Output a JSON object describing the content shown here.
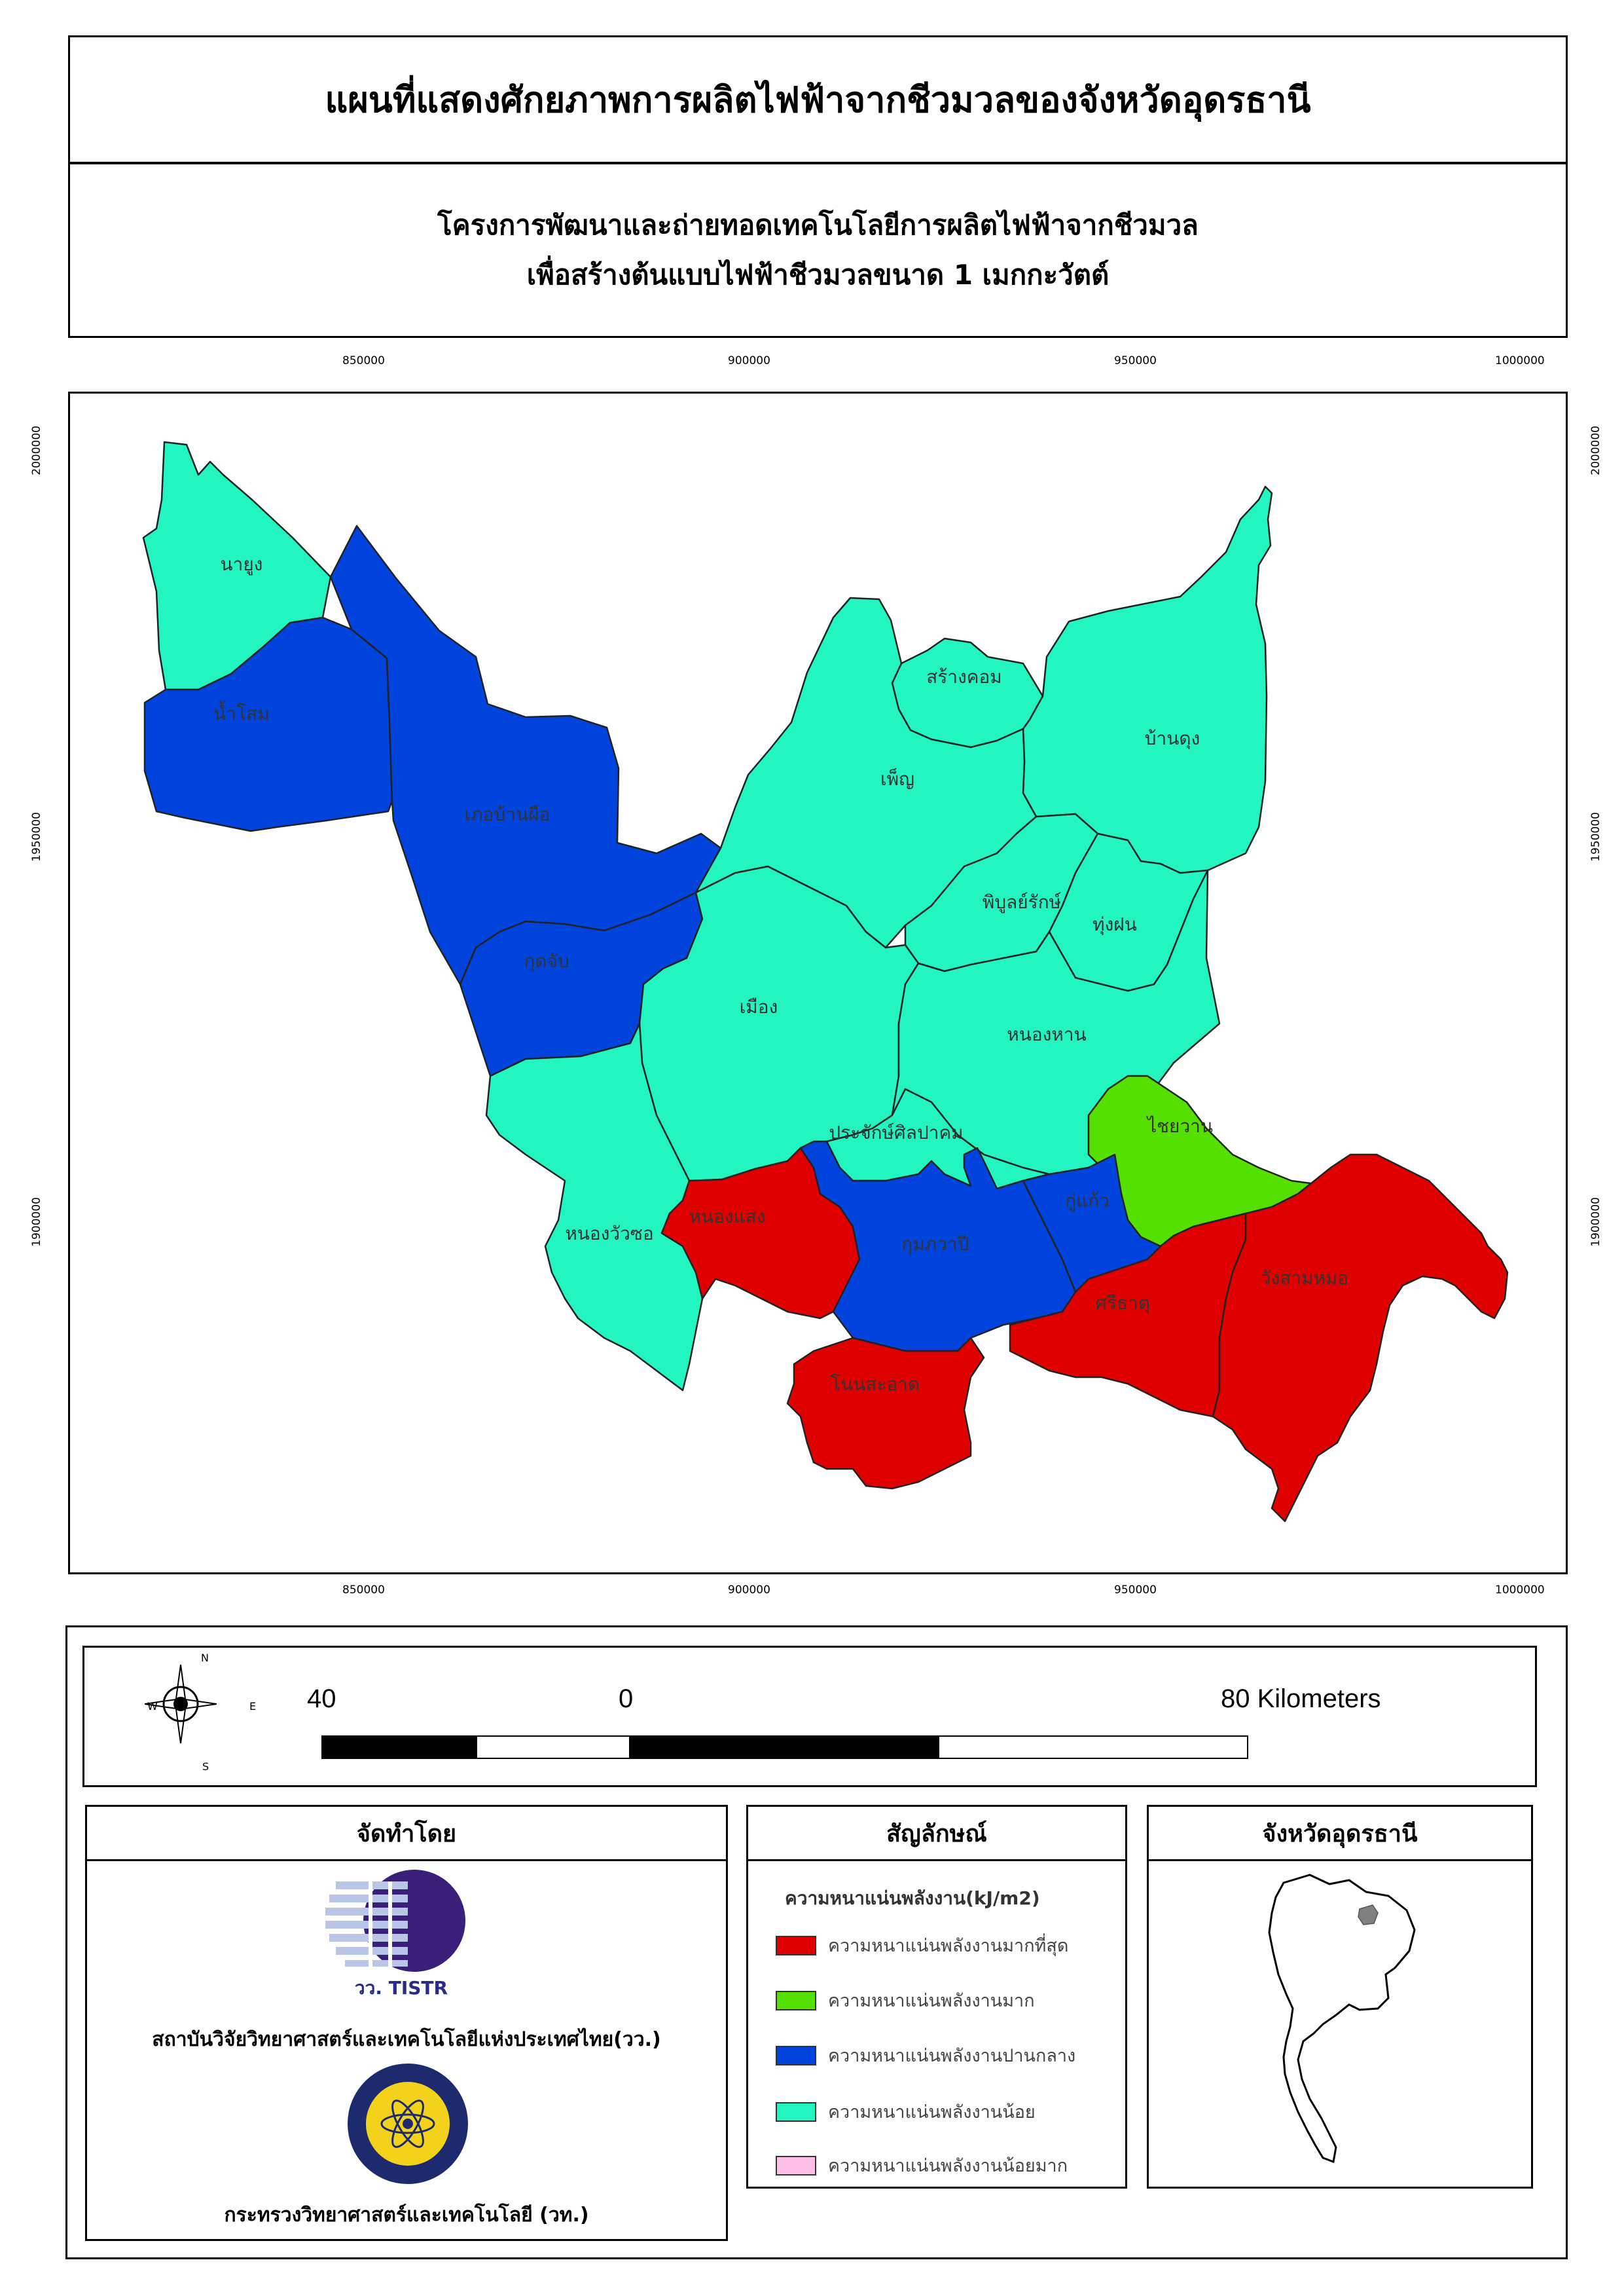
{
  "title": "แผนที่แสดงศักยภาพการผลิตไฟฟ้าจากชีวมวลของจังหวัดอุดรธานี",
  "subtitle": {
    "line1": "โครงการพัฒนาและถ่ายทอดเทคโนโลยีการผลิตไฟฟ้าจากชีวมวล",
    "line2": "เพื่อสร้างต้นแบบไฟฟ้าชีวมวลขนาด 1 เมกกะวัตต์"
  },
  "grid": {
    "easting_ticks": [
      "850000",
      "900000",
      "950000",
      "1000000"
    ],
    "northing_ticks": [
      "2000000",
      "1950000",
      "1900000"
    ]
  },
  "districts": [
    {
      "name": "นายูง",
      "class": "low"
    },
    {
      "name": "น้ำโสม",
      "class": "medium"
    },
    {
      "name": "เภอบ้านผือ",
      "class": "medium"
    },
    {
      "name": "กุดจับ",
      "class": "medium"
    },
    {
      "name": "สร้างคอม",
      "class": "low"
    },
    {
      "name": "บ้านดุง",
      "class": "low"
    },
    {
      "name": "เพ็ญ",
      "class": "low"
    },
    {
      "name": "พิบูลย์รักษ์",
      "class": "low"
    },
    {
      "name": "ทุ่งฝน",
      "class": "low"
    },
    {
      "name": "เมือง",
      "class": "low"
    },
    {
      "name": "หนองหาน",
      "class": "low"
    },
    {
      "name": "ไชยวาน",
      "class": "high"
    },
    {
      "name": "ประจักษ์ศิลปาคม",
      "class": "low"
    },
    {
      "name": "หนองวัวซอ",
      "class": "low"
    },
    {
      "name": "หนองแสง",
      "class": "highest"
    },
    {
      "name": "กุมภวาปี",
      "class": "medium"
    },
    {
      "name": "กู่แก้ว",
      "class": "medium"
    },
    {
      "name": "ศรีธาตุ",
      "class": "highest"
    },
    {
      "name": "วังสามหมอ",
      "class": "highest"
    },
    {
      "name": "โนนสะอาด",
      "class": "highest"
    }
  ],
  "colors": {
    "highest": "#e00000",
    "high": "#55e000",
    "medium": "#0044dd",
    "low": "#22f5c0",
    "lowest": "#ffbfe6"
  },
  "scalebar": {
    "left_label": "40",
    "zero_label": "0",
    "right_label": "80 Kilometers"
  },
  "north_arrow": {
    "n": "N",
    "s": "S",
    "e": "E",
    "w": "W"
  },
  "producer": {
    "heading": "จัดทำโดย",
    "logo1_text": "วว. TISTR",
    "org1": "สถาบันวิจัยวิทยาศาสตร์และเทคโนโลยีแห่งประเทศไทย(วว.)",
    "org2": "กระทรวงวิทยาศาสตร์และเทคโนโลยี (วท.)"
  },
  "legend": {
    "heading": "สัญลักษณ์",
    "subtitle": "ความหนาแน่นพลังงาน(kJ/m2)",
    "items": [
      {
        "label": "ความหนาแน่นพลังงานมากที่สุด",
        "color": "#e00000"
      },
      {
        "label": "ความหนาแน่นพลังงานมาก",
        "color": "#55e000"
      },
      {
        "label": "ความหนาแน่นพลังงานปานกลาง",
        "color": "#0044dd"
      },
      {
        "label": "ความหนาแน่นพลังงานน้อย",
        "color": "#22f5c0"
      },
      {
        "label": "ความหนาแน่นพลังงานน้อยมาก",
        "color": "#ffbfe6"
      }
    ]
  },
  "inset": {
    "heading": "จังหวัดอุดรธานี"
  }
}
